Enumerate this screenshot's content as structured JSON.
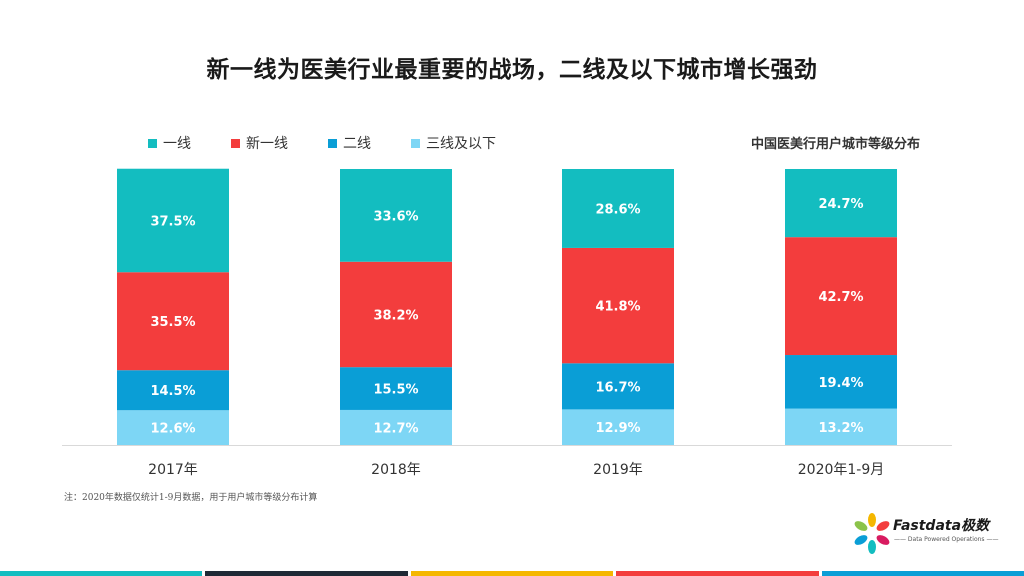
{
  "title": "新一线为医美行业最重要的战场，二线及以下城市增长强劲",
  "chart_subtitle": "中国医美行用户城市等级分布",
  "footnote": "注：2020年数据仅统计1-9月数据，用于用户城市等级分布计算",
  "logo": {
    "name": "Fastdata极数",
    "tagline": "—— Data Powered Operations ——"
  },
  "colors": {
    "tier1": "#13bdc0",
    "new_tier1": "#f33d3d",
    "tier2": "#0a9ed6",
    "tier3_below": "#7dd6f5",
    "bottom_bar": [
      "#13bdc0",
      "#1f2a36",
      "#f5b700",
      "#f33d3d",
      "#0a9ed6"
    ]
  },
  "chart_data": {
    "type": "bar",
    "stacked": true,
    "categories": [
      "2017年",
      "2018年",
      "2019年",
      "2020年1-9月"
    ],
    "series": [
      {
        "name": "一线",
        "color": "#13bdc0",
        "values": [
          37.5,
          33.6,
          28.6,
          24.7
        ]
      },
      {
        "name": "新一线",
        "color": "#f33d3d",
        "values": [
          35.5,
          38.2,
          41.8,
          42.7
        ]
      },
      {
        "name": "二线",
        "color": "#0a9ed6",
        "values": [
          14.5,
          15.5,
          16.7,
          19.4
        ]
      },
      {
        "name": "三线及以下",
        "color": "#7dd6f5",
        "values": [
          12.6,
          12.7,
          12.9,
          13.2
        ]
      }
    ],
    "value_suffix": "%",
    "ylim": [
      0,
      100
    ],
    "legend_position": "top-left",
    "grid": false
  }
}
